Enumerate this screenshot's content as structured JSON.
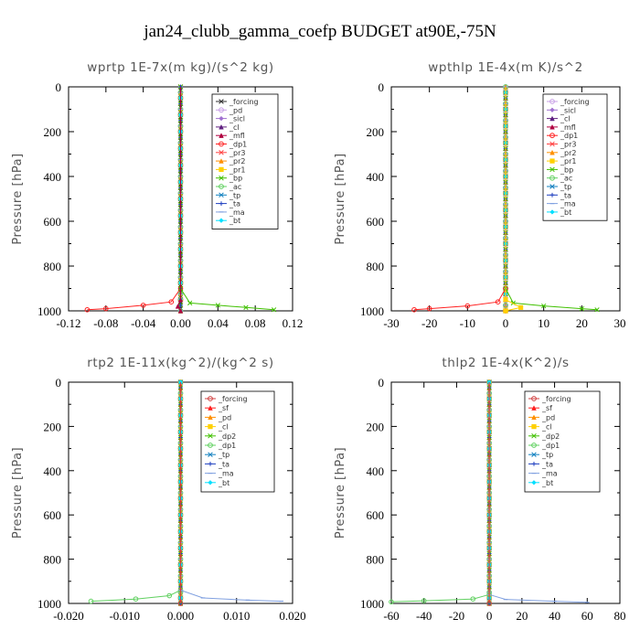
{
  "figure_title": "jan24_clubb_gamma_coefp  BUDGET at90E,-75N",
  "chart_data": [
    {
      "type": "line",
      "title": "wprtp  1E-7x(m kg)/(s^2 kg)",
      "ylabel": "Pressure [hPa]",
      "xlim": [
        -0.12,
        0.12
      ],
      "xticks": [
        "-0.12",
        "-0.08",
        "-0.04",
        "0.00",
        "0.04",
        "0.08",
        "0.12"
      ],
      "ylim": [
        1000,
        0
      ],
      "yticks": [
        "0",
        "200",
        "400",
        "600",
        "800",
        "1000"
      ],
      "legend_position": "top-right",
      "series": [
        {
          "name": "_forcing",
          "color": "#333333",
          "marker": "x"
        },
        {
          "name": "_pd",
          "color": "#c8a0e6",
          "marker": "circle"
        },
        {
          "name": "_sicl",
          "color": "#a070d0",
          "marker": "diamond"
        },
        {
          "name": "_cl",
          "color": "#602080",
          "marker": "triangle"
        },
        {
          "name": "_mfl",
          "color": "#b00040",
          "marker": "triangle"
        },
        {
          "name": "_dp1",
          "color": "#ff2020",
          "marker": "circle"
        },
        {
          "name": "_pr3",
          "color": "#ff4040",
          "marker": "x"
        },
        {
          "name": "_pr2",
          "color": "#ff9000",
          "marker": "triangle"
        },
        {
          "name": "_pr1",
          "color": "#ffd000",
          "marker": "square"
        },
        {
          "name": "_bp",
          "color": "#40c000",
          "marker": "x"
        },
        {
          "name": "_ac",
          "color": "#60d060",
          "marker": "circle"
        },
        {
          "name": "_tp",
          "color": "#1080c0",
          "marker": "x"
        },
        {
          "name": "_ta",
          "color": "#2040c0",
          "marker": "plus"
        },
        {
          "name": "_ma",
          "color": "#80a0e0",
          "marker": "dash"
        },
        {
          "name": "_bt",
          "color": "#00e0ff",
          "marker": "diamond"
        }
      ],
      "profiles": [
        {
          "series": "_dp1",
          "points": [
            [
              0,
              0
            ],
            [
              0,
              900
            ],
            [
              -0.01,
              960
            ],
            [
              -0.04,
              975
            ],
            [
              -0.08,
              990
            ],
            [
              -0.1,
              995
            ]
          ]
        },
        {
          "series": "_bp",
          "points": [
            [
              0,
              0
            ],
            [
              0,
              900
            ],
            [
              0.01,
              965
            ],
            [
              0.04,
              975
            ],
            [
              0.07,
              985
            ],
            [
              0.1,
              995
            ]
          ]
        },
        {
          "series": "_mfl",
          "points": [
            [
              0,
              0
            ],
            [
              0,
              950
            ],
            [
              -0.003,
              980
            ],
            [
              0,
              1000
            ]
          ]
        }
      ]
    },
    {
      "type": "line",
      "title": "wpthlp  1E-4x(m K)/s^2",
      "ylabel": "Pressure [hPa]",
      "xlim": [
        -30,
        30
      ],
      "xticks": [
        "-30",
        "-20",
        "-10",
        "0",
        "10",
        "20",
        "30"
      ],
      "ylim": [
        1000,
        0
      ],
      "yticks": [
        "0",
        "200",
        "400",
        "600",
        "800",
        "1000"
      ],
      "legend_position": "top-right",
      "series": [
        {
          "name": "_forcing",
          "color": "#c8a0e6",
          "marker": "circle"
        },
        {
          "name": "_sicl",
          "color": "#a070d0",
          "marker": "diamond"
        },
        {
          "name": "_cl",
          "color": "#602080",
          "marker": "triangle"
        },
        {
          "name": "_mfl",
          "color": "#b00040",
          "marker": "triangle"
        },
        {
          "name": "_dp1",
          "color": "#ff2020",
          "marker": "circle"
        },
        {
          "name": "_pr3",
          "color": "#ff4040",
          "marker": "x"
        },
        {
          "name": "_pr2",
          "color": "#ff9000",
          "marker": "triangle"
        },
        {
          "name": "_pr1",
          "color": "#ffd000",
          "marker": "square"
        },
        {
          "name": "_bp",
          "color": "#40c000",
          "marker": "x"
        },
        {
          "name": "_ac",
          "color": "#60d060",
          "marker": "circle"
        },
        {
          "name": "_tp",
          "color": "#1080c0",
          "marker": "x"
        },
        {
          "name": "_ta",
          "color": "#2040c0",
          "marker": "plus"
        },
        {
          "name": "_ma",
          "color": "#80a0e0",
          "marker": "dash"
        },
        {
          "name": "_bt",
          "color": "#00e0ff",
          "marker": "diamond"
        }
      ],
      "profiles": [
        {
          "series": "_dp1",
          "points": [
            [
              0,
              0
            ],
            [
              0,
              900
            ],
            [
              -2,
              960
            ],
            [
              -10,
              978
            ],
            [
              -20,
              990
            ],
            [
              -24,
              995
            ]
          ]
        },
        {
          "series": "_bp",
          "points": [
            [
              0,
              0
            ],
            [
              0,
              900
            ],
            [
              2,
              965
            ],
            [
              10,
              978
            ],
            [
              20,
              990
            ],
            [
              24,
              995
            ]
          ]
        },
        {
          "series": "_pr1",
          "points": [
            [
              0,
              0
            ],
            [
              0,
              950
            ],
            [
              4,
              985
            ],
            [
              0,
              1000
            ]
          ]
        }
      ]
    },
    {
      "type": "line",
      "title": "rtp2  1E-11x(kg^2)/(kg^2 s)",
      "ylabel": "Pressure [hPa]",
      "xlim": [
        -0.02,
        0.02
      ],
      "xticks": [
        "-0.020",
        "-0.010",
        "0.000",
        "0.010",
        "0.020"
      ],
      "ylim": [
        1000,
        0
      ],
      "yticks": [
        "0",
        "200",
        "400",
        "600",
        "800",
        "1000"
      ],
      "legend_position": "top-right",
      "series": [
        {
          "name": "_forcing",
          "color": "#d04040",
          "marker": "circle"
        },
        {
          "name": "_sf",
          "color": "#ff2020",
          "marker": "triangle"
        },
        {
          "name": "_pd",
          "color": "#ff9000",
          "marker": "triangle"
        },
        {
          "name": "_cl",
          "color": "#ffd000",
          "marker": "square"
        },
        {
          "name": "_dp2",
          "color": "#40c000",
          "marker": "x"
        },
        {
          "name": "_dp1",
          "color": "#60d060",
          "marker": "circle"
        },
        {
          "name": "_tp",
          "color": "#1080c0",
          "marker": "x"
        },
        {
          "name": "_ta",
          "color": "#2040c0",
          "marker": "plus"
        },
        {
          "name": "_ma",
          "color": "#80a0e0",
          "marker": "dash"
        },
        {
          "name": "_bt",
          "color": "#00e0ff",
          "marker": "diamond"
        }
      ],
      "profiles": [
        {
          "series": "_dp1",
          "points": [
            [
              0,
              0
            ],
            [
              0,
              940
            ],
            [
              -0.002,
              965
            ],
            [
              -0.008,
              980
            ],
            [
              -0.016,
              990
            ]
          ]
        },
        {
          "series": "_ma",
          "points": [
            [
              0,
              0
            ],
            [
              0,
              940
            ],
            [
              0.004,
              975
            ],
            [
              0.012,
              985
            ],
            [
              0.018,
              990
            ]
          ]
        },
        {
          "series": "_forcing",
          "points": [
            [
              0,
              0
            ],
            [
              0,
              1000
            ]
          ]
        }
      ]
    },
    {
      "type": "line",
      "title": "thlp2  1E-4x(K^2)/s",
      "ylabel": "Pressure [hPa]",
      "xlim": [
        -60,
        80
      ],
      "xticks": [
        "-60",
        "-40",
        "-20",
        "0",
        "20",
        "40",
        "60",
        "80"
      ],
      "ylim": [
        1000,
        0
      ],
      "yticks": [
        "0",
        "200",
        "400",
        "600",
        "800",
        "1000"
      ],
      "legend_position": "top-right",
      "series": [
        {
          "name": "_forcing",
          "color": "#d04040",
          "marker": "circle"
        },
        {
          "name": "_sf",
          "color": "#ff2020",
          "marker": "triangle"
        },
        {
          "name": "_pd",
          "color": "#ff9000",
          "marker": "triangle"
        },
        {
          "name": "_cl",
          "color": "#ffd000",
          "marker": "square"
        },
        {
          "name": "_dp2",
          "color": "#40c000",
          "marker": "x"
        },
        {
          "name": "_dp1",
          "color": "#60d060",
          "marker": "circle"
        },
        {
          "name": "_tp",
          "color": "#1080c0",
          "marker": "x"
        },
        {
          "name": "_ta",
          "color": "#2040c0",
          "marker": "plus"
        },
        {
          "name": "_ma",
          "color": "#80a0e0",
          "marker": "dash"
        },
        {
          "name": "_bt",
          "color": "#00e0ff",
          "marker": "diamond"
        }
      ],
      "profiles": [
        {
          "series": "_dp1",
          "points": [
            [
              0,
              0
            ],
            [
              0,
              960
            ],
            [
              -10,
              980
            ],
            [
              -40,
              988
            ],
            [
              -60,
              993
            ]
          ]
        },
        {
          "series": "_ma",
          "points": [
            [
              0,
              0
            ],
            [
              0,
              960
            ],
            [
              10,
              982
            ],
            [
              40,
              990
            ],
            [
              60,
              995
            ]
          ]
        },
        {
          "series": "_forcing",
          "points": [
            [
              0,
              0
            ],
            [
              0,
              1000
            ]
          ]
        }
      ]
    }
  ]
}
